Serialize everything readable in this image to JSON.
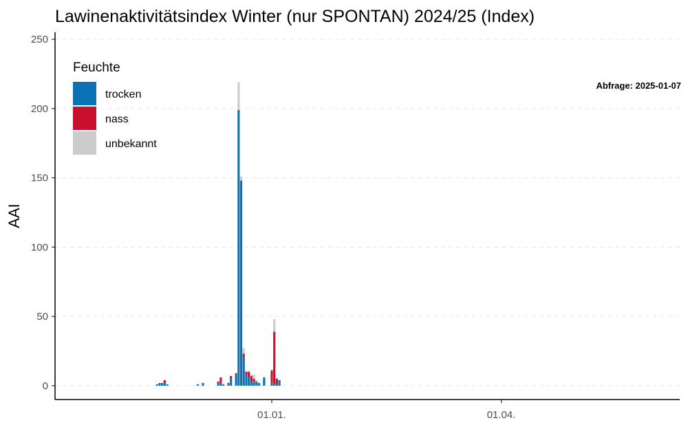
{
  "chart_data": {
    "type": "bar",
    "stacked": true,
    "title": "Lawinenaktivitätsindex Winter (nur SPONTAN) 2024/25 (Index)",
    "ylabel": "AAI",
    "xlabel": "",
    "ylim": [
      -10,
      255
    ],
    "yticks": [
      0,
      50,
      100,
      150,
      200,
      250
    ],
    "xticks": [
      {
        "date": "2025-01-01",
        "label": "01.01."
      },
      {
        "date": "2025-04-01",
        "label": "01.04."
      }
    ],
    "xlim": [
      "2024-10-08",
      "2025-06-10"
    ],
    "grid": "horizontal",
    "legend": {
      "title": "Feuchte",
      "placement": "top-left",
      "entries": [
        {
          "name": "trocken",
          "color": "#0b72b5"
        },
        {
          "name": "nass",
          "color": "#c8102e"
        },
        {
          "name": "unbekannt",
          "color": "#cccccc"
        }
      ]
    },
    "annotation": "Abfrage: 2025-01-07",
    "x": [
      "2024-11-17",
      "2024-11-18",
      "2024-11-19",
      "2024-11-20",
      "2024-11-21",
      "2024-12-03",
      "2024-12-05",
      "2024-12-11",
      "2024-12-12",
      "2024-12-13",
      "2024-12-15",
      "2024-12-16",
      "2024-12-18",
      "2024-12-19",
      "2024-12-20",
      "2024-12-21",
      "2024-12-22",
      "2024-12-23",
      "2024-12-24",
      "2024-12-25",
      "2024-12-26",
      "2024-12-27",
      "2024-12-28",
      "2024-12-29",
      "2025-01-01",
      "2025-01-02",
      "2025-01-03",
      "2025-01-04"
    ],
    "series": [
      {
        "name": "trocken",
        "values": [
          1,
          2,
          2,
          2,
          1,
          1,
          2,
          2,
          2,
          1,
          1,
          5,
          8,
          199,
          148,
          21,
          8,
          6,
          3,
          3,
          3,
          2,
          0,
          6,
          2,
          1,
          1,
          4
        ]
      },
      {
        "name": "nass",
        "values": [
          0,
          0,
          0,
          2,
          0,
          0,
          0,
          1,
          4,
          0,
          1,
          2,
          1,
          0,
          0,
          2,
          2,
          4,
          4,
          2,
          0,
          0,
          0,
          0,
          9,
          38,
          4,
          0
        ]
      },
      {
        "name": "unbekannt",
        "values": [
          0,
          0,
          0,
          0,
          0,
          0,
          0,
          0,
          0,
          0,
          0,
          0,
          0,
          20,
          3,
          4,
          1,
          1,
          1,
          3,
          1,
          0,
          0,
          0,
          1,
          9,
          1,
          0
        ]
      }
    ]
  }
}
